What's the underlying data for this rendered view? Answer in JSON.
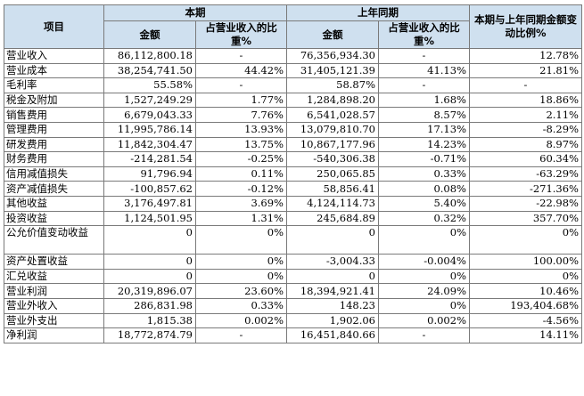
{
  "header": {
    "item": "项目",
    "current_period": "本期",
    "prior_period": "上年同期",
    "change": "本期与上年同期金额变动比例%",
    "amount": "金额",
    "ratio": "占营业收入的比重%"
  },
  "rows": [
    {
      "label": "营业收入",
      "cur_amount": "86,112,800.18",
      "cur_ratio": "-",
      "prev_amount": "76,356,934.30",
      "prev_ratio": "-",
      "change": "12.78%"
    },
    {
      "label": "营业成本",
      "cur_amount": "38,254,741.50",
      "cur_ratio": "44.42%",
      "prev_amount": "31,405,121.39",
      "prev_ratio": "41.13%",
      "change": "21.81%"
    },
    {
      "label": "毛利率",
      "cur_amount": "55.58%",
      "cur_ratio": "-",
      "prev_amount": "58.87%",
      "prev_ratio": "-",
      "change": "-"
    },
    {
      "label": "税金及附加",
      "cur_amount": "1,527,249.29",
      "cur_ratio": "1.77%",
      "prev_amount": "1,284,898.20",
      "prev_ratio": "1.68%",
      "change": "18.86%"
    },
    {
      "label": "销售费用",
      "cur_amount": "6,679,043.33",
      "cur_ratio": "7.76%",
      "prev_amount": "6,541,028.57",
      "prev_ratio": "8.57%",
      "change": "2.11%"
    },
    {
      "label": "管理费用",
      "cur_amount": "11,995,786.14",
      "cur_ratio": "13.93%",
      "prev_amount": "13,079,810.70",
      "prev_ratio": "17.13%",
      "change": "-8.29%"
    },
    {
      "label": "研发费用",
      "cur_amount": "11,842,304.47",
      "cur_ratio": "13.75%",
      "prev_amount": "10,867,177.96",
      "prev_ratio": "14.23%",
      "change": "8.97%"
    },
    {
      "label": "财务费用",
      "cur_amount": "-214,281.54",
      "cur_ratio": "-0.25%",
      "prev_amount": "-540,306.38",
      "prev_ratio": "-0.71%",
      "change": "60.34%"
    },
    {
      "label": "信用减值损失",
      "cur_amount": "91,796.94",
      "cur_ratio": "0.11%",
      "prev_amount": "250,065.85",
      "prev_ratio": "0.33%",
      "change": "-63.29%"
    },
    {
      "label": "资产减值损失",
      "cur_amount": "-100,857.62",
      "cur_ratio": "-0.12%",
      "prev_amount": "58,856.41",
      "prev_ratio": "0.08%",
      "change": "-271.36%"
    },
    {
      "label": "其他收益",
      "cur_amount": "3,176,497.81",
      "cur_ratio": "3.69%",
      "prev_amount": "4,124,114.73",
      "prev_ratio": "5.40%",
      "change": "-22.98%"
    },
    {
      "label": "投资收益",
      "cur_amount": "1,124,501.95",
      "cur_ratio": "1.31%",
      "prev_amount": "245,684.89",
      "prev_ratio": "0.32%",
      "change": "357.70%"
    },
    {
      "label": "公允价值变动收益",
      "cur_amount": "0",
      "cur_ratio": "0%",
      "prev_amount": "0",
      "prev_ratio": "0%",
      "change": "0%",
      "tall": true
    },
    {
      "label": "资产处置收益",
      "cur_amount": "0",
      "cur_ratio": "0%",
      "prev_amount": "-3,004.33",
      "prev_ratio": "-0.004%",
      "change": "100.00%"
    },
    {
      "label": "汇兑收益",
      "cur_amount": "0",
      "cur_ratio": "0%",
      "prev_amount": "0",
      "prev_ratio": "0%",
      "change": "0%"
    },
    {
      "label": "营业利润",
      "cur_amount": "20,319,896.07",
      "cur_ratio": "23.60%",
      "prev_amount": "18,394,921.41",
      "prev_ratio": "24.09%",
      "change": "10.46%"
    },
    {
      "label": "营业外收入",
      "cur_amount": "286,831.98",
      "cur_ratio": "0.33%",
      "prev_amount": "148.23",
      "prev_ratio": "0%",
      "change": "193,404.68%"
    },
    {
      "label": "营业外支出",
      "cur_amount": "1,815.38",
      "cur_ratio": "0.002%",
      "prev_amount": "1,902.06",
      "prev_ratio": "0.002%",
      "change": "-4.56%"
    },
    {
      "label": "净利润",
      "cur_amount": "18,772,874.79",
      "cur_ratio": "-",
      "prev_amount": "16,451,840.66",
      "prev_ratio": "-",
      "change": "14.11%"
    }
  ]
}
